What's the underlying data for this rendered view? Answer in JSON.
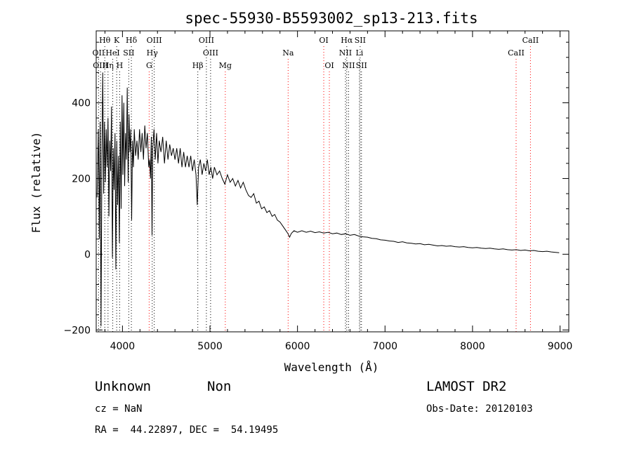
{
  "chart_data": {
    "type": "line",
    "title": "spec-55930-B5593002_sp13-213.fits",
    "xlabel": "Wavelength (Å)",
    "ylabel": "Flux (relative)",
    "xlim": [
      3700,
      9100
    ],
    "ylim": [
      -205,
      590
    ],
    "x_ticks": [
      4000,
      5000,
      6000,
      7000,
      8000,
      9000
    ],
    "y_ticks": [
      -200,
      0,
      200,
      400
    ],
    "grid": false,
    "spectrum_points": [
      [
        3710,
        150
      ],
      [
        3725,
        330
      ],
      [
        3735,
        40
      ],
      [
        3745,
        350
      ],
      [
        3755,
        -190
      ],
      [
        3765,
        250
      ],
      [
        3775,
        480
      ],
      [
        3785,
        160
      ],
      [
        3795,
        350
      ],
      [
        3805,
        190
      ],
      [
        3815,
        330
      ],
      [
        3825,
        230
      ],
      [
        3835,
        360
      ],
      [
        3845,
        100
      ],
      [
        3855,
        300
      ],
      [
        3865,
        220
      ],
      [
        3875,
        390
      ],
      [
        3885,
        -10
      ],
      [
        3895,
        280
      ],
      [
        3905,
        170
      ],
      [
        3915,
        320
      ],
      [
        3925,
        -40
      ],
      [
        3935,
        300
      ],
      [
        3945,
        130
      ],
      [
        3955,
        260
      ],
      [
        3965,
        30
      ],
      [
        3975,
        350
      ],
      [
        3985,
        120
      ],
      [
        3995,
        420
      ],
      [
        4005,
        210
      ],
      [
        4015,
        400
      ],
      [
        4025,
        180
      ],
      [
        4035,
        320
      ],
      [
        4045,
        250
      ],
      [
        4055,
        440
      ],
      [
        4065,
        190
      ],
      [
        4075,
        370
      ],
      [
        4085,
        270
      ],
      [
        4095,
        330
      ],
      [
        4105,
        90
      ],
      [
        4115,
        300
      ],
      [
        4125,
        230
      ],
      [
        4135,
        330
      ],
      [
        4150,
        260
      ],
      [
        4165,
        300
      ],
      [
        4180,
        250
      ],
      [
        4195,
        330
      ],
      [
        4210,
        270
      ],
      [
        4225,
        320
      ],
      [
        4240,
        250
      ],
      [
        4255,
        340
      ],
      [
        4270,
        280
      ],
      [
        4285,
        320
      ],
      [
        4300,
        230
      ],
      [
        4310,
        250
      ],
      [
        4320,
        200
      ],
      [
        4330,
        310
      ],
      [
        4338,
        50
      ],
      [
        4346,
        280
      ],
      [
        4360,
        330
      ],
      [
        4375,
        250
      ],
      [
        4390,
        320
      ],
      [
        4405,
        240
      ],
      [
        4420,
        300
      ],
      [
        4440,
        270
      ],
      [
        4460,
        310
      ],
      [
        4480,
        240
      ],
      [
        4500,
        300
      ],
      [
        4520,
        250
      ],
      [
        4540,
        290
      ],
      [
        4560,
        260
      ],
      [
        4580,
        280
      ],
      [
        4600,
        250
      ],
      [
        4620,
        280
      ],
      [
        4640,
        240
      ],
      [
        4660,
        280
      ],
      [
        4680,
        230
      ],
      [
        4700,
        270
      ],
      [
        4720,
        230
      ],
      [
        4740,
        260
      ],
      [
        4760,
        230
      ],
      [
        4780,
        260
      ],
      [
        4800,
        220
      ],
      [
        4820,
        250
      ],
      [
        4840,
        210
      ],
      [
        4855,
        130
      ],
      [
        4870,
        230
      ],
      [
        4890,
        250
      ],
      [
        4910,
        210
      ],
      [
        4930,
        240
      ],
      [
        4950,
        220
      ],
      [
        4970,
        250
      ],
      [
        4990,
        210
      ],
      [
        5010,
        230
      ],
      [
        5030,
        200
      ],
      [
        5050,
        230
      ],
      [
        5080,
        210
      ],
      [
        5110,
        220
      ],
      [
        5140,
        200
      ],
      [
        5170,
        185
      ],
      [
        5200,
        210
      ],
      [
        5230,
        190
      ],
      [
        5260,
        200
      ],
      [
        5290,
        180
      ],
      [
        5320,
        195
      ],
      [
        5350,
        175
      ],
      [
        5380,
        190
      ],
      [
        5410,
        170
      ],
      [
        5440,
        155
      ],
      [
        5470,
        150
      ],
      [
        5500,
        160
      ],
      [
        5530,
        135
      ],
      [
        5560,
        140
      ],
      [
        5590,
        120
      ],
      [
        5620,
        125
      ],
      [
        5650,
        110
      ],
      [
        5680,
        115
      ],
      [
        5710,
        100
      ],
      [
        5740,
        105
      ],
      [
        5770,
        90
      ],
      [
        5800,
        85
      ],
      [
        5830,
        75
      ],
      [
        5860,
        65
      ],
      [
        5890,
        55
      ],
      [
        5910,
        45
      ],
      [
        5930,
        55
      ],
      [
        5960,
        62
      ],
      [
        6000,
        58
      ],
      [
        6050,
        62
      ],
      [
        6100,
        58
      ],
      [
        6150,
        61
      ],
      [
        6200,
        57
      ],
      [
        6250,
        59
      ],
      [
        6300,
        56
      ],
      [
        6350,
        58
      ],
      [
        6400,
        54
      ],
      [
        6450,
        56
      ],
      [
        6500,
        52
      ],
      [
        6550,
        54
      ],
      [
        6600,
        50
      ],
      [
        6650,
        52
      ],
      [
        6700,
        48
      ],
      [
        6750,
        46
      ],
      [
        6800,
        45
      ],
      [
        6850,
        42
      ],
      [
        6900,
        41
      ],
      [
        6950,
        38
      ],
      [
        7000,
        37
      ],
      [
        7050,
        35
      ],
      [
        7100,
        34
      ],
      [
        7150,
        31
      ],
      [
        7200,
        33
      ],
      [
        7250,
        30
      ],
      [
        7300,
        29
      ],
      [
        7350,
        27
      ],
      [
        7400,
        28
      ],
      [
        7450,
        25
      ],
      [
        7500,
        26
      ],
      [
        7550,
        24
      ],
      [
        7600,
        22
      ],
      [
        7650,
        23
      ],
      [
        7700,
        21
      ],
      [
        7750,
        22
      ],
      [
        7800,
        20
      ],
      [
        7850,
        19
      ],
      [
        7900,
        20
      ],
      [
        7950,
        18
      ],
      [
        8000,
        17
      ],
      [
        8050,
        18
      ],
      [
        8100,
        16
      ],
      [
        8150,
        15
      ],
      [
        8200,
        16
      ],
      [
        8250,
        14
      ],
      [
        8300,
        13
      ],
      [
        8350,
        14
      ],
      [
        8400,
        12
      ],
      [
        8450,
        11
      ],
      [
        8500,
        12
      ],
      [
        8550,
        10
      ],
      [
        8600,
        11
      ],
      [
        8650,
        9
      ],
      [
        8700,
        10
      ],
      [
        8750,
        8
      ],
      [
        8800,
        7
      ],
      [
        8850,
        8
      ],
      [
        8900,
        6
      ],
      [
        8950,
        5
      ],
      [
        8990,
        4
      ]
    ],
    "spectral_lines": [
      {
        "label": "Hθ",
        "wavelength": 3798,
        "row": 0,
        "color": "#000000"
      },
      {
        "label": "K",
        "wavelength": 3934,
        "row": 0,
        "color": "#000000"
      },
      {
        "label": "Hδ",
        "wavelength": 4102,
        "row": 0,
        "color": "#000000"
      },
      {
        "label": "OIII",
        "wavelength": 4363,
        "row": 0,
        "color": "#000000"
      },
      {
        "label": "OIII",
        "wavelength": 4959,
        "row": 0,
        "color": "#000000"
      },
      {
        "label": "OI",
        "wavelength": 6300,
        "row": 0,
        "color": "#ff0000"
      },
      {
        "label": "Hα",
        "wavelength": 6563,
        "row": 0,
        "color": "#000000"
      },
      {
        "label": "SII",
        "wavelength": 6716,
        "row": 0,
        "color": "#000000"
      },
      {
        "label": "CaII",
        "wavelength": 8662,
        "row": 0,
        "color": "#ff0000"
      },
      {
        "label": "OII",
        "wavelength": 3727,
        "row": 1,
        "color": "#000000"
      },
      {
        "label": "HeI",
        "wavelength": 3889,
        "row": 1,
        "color": "#000000"
      },
      {
        "label": "SII",
        "wavelength": 4072,
        "row": 1,
        "color": "#000000"
      },
      {
        "label": "Hγ",
        "wavelength": 4340,
        "row": 1,
        "color": "#000000"
      },
      {
        "label": "OIII",
        "wavelength": 5007,
        "row": 1,
        "color": "#000000"
      },
      {
        "label": "Na",
        "wavelength": 5893,
        "row": 1,
        "color": "#ff0000"
      },
      {
        "label": "NII",
        "wavelength": 6548,
        "row": 1,
        "color": "#000000"
      },
      {
        "label": "Li",
        "wavelength": 6708,
        "row": 1,
        "color": "#000000"
      },
      {
        "label": "CaII",
        "wavelength": 8498,
        "row": 1,
        "color": "#ff0000"
      },
      {
        "label": "OIII",
        "wavelength": 3750,
        "row": 2,
        "color": "#000000"
      },
      {
        "label": "Hη",
        "wavelength": 3835,
        "row": 2,
        "color": "#000000"
      },
      {
        "label": "H",
        "wavelength": 3968,
        "row": 2,
        "color": "#000000"
      },
      {
        "label": "G",
        "wavelength": 4305,
        "row": 2,
        "color": "#ff0000"
      },
      {
        "label": "Hβ",
        "wavelength": 4861,
        "row": 2,
        "color": "#000000"
      },
      {
        "label": "Mg",
        "wavelength": 5175,
        "row": 2,
        "color": "#ff0000"
      },
      {
        "label": "OI",
        "wavelength": 6364,
        "row": 2,
        "color": "#ff0000"
      },
      {
        "label": "NII",
        "wavelength": 6584,
        "row": 2,
        "color": "#000000"
      },
      {
        "label": "SII",
        "wavelength": 6731,
        "row": 2,
        "color": "#000000"
      }
    ]
  },
  "info": {
    "class_text": "Unknown",
    "subclass_text": "Non",
    "survey_text": "LAMOST DR2",
    "cz_text": "cz = NaN",
    "obs_date_text": "Obs-Date: 20120103",
    "coords_text": "RA =  44.22897, DEC =  54.19495"
  }
}
